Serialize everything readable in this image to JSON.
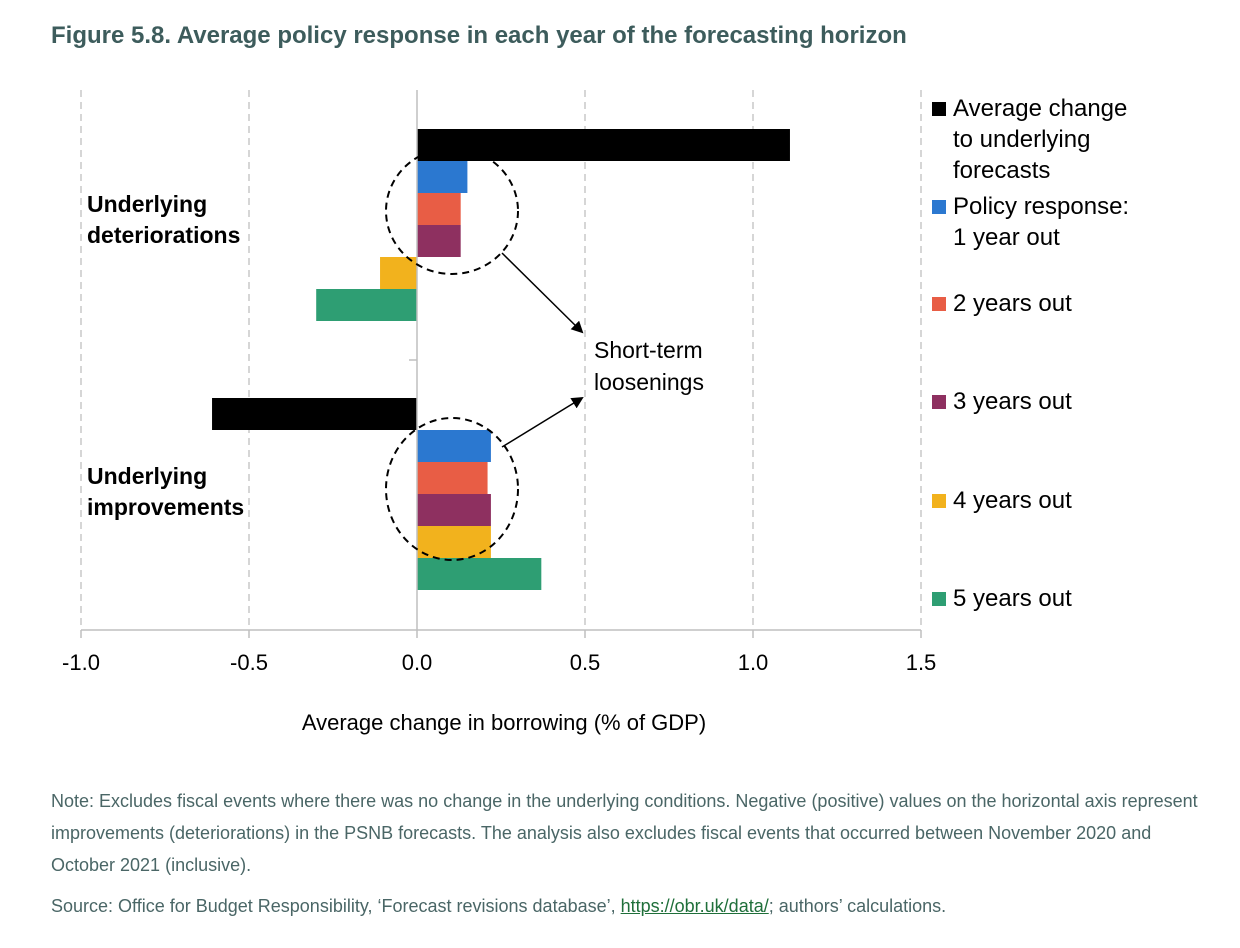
{
  "title": "Figure 5.8. Average policy response in each year of the forecasting horizon",
  "note": "Note: Excludes fiscal events where there was no change in the underlying conditions. Negative (positive) values on the horizontal axis represent improvements (deteriorations) in the PSNB forecasts. The analysis also excludes fiscal events that occurred between November 2020 and October 2021 (inclusive).",
  "source": {
    "prefix": "Source: Office for Budget Responsibility, ‘Forecast revisions database’, ",
    "link": "https://obr.uk/data/",
    "suffix": "; authors’ calculations."
  },
  "annotation": [
    "Short-term",
    "loosenings"
  ],
  "chart_data": {
    "type": "bar",
    "orientation": "horizontal",
    "categories": [
      [
        "Underlying",
        "deteriorations"
      ],
      [
        "Underlying",
        "improvements"
      ]
    ],
    "xlabel": "Average change in borrowing (% of GDP)",
    "xlim": [
      -1.0,
      1.5
    ],
    "xticks": [
      "-1.0",
      "-0.5",
      "0.0",
      "0.5",
      "1.0",
      "1.5"
    ],
    "grid": "vertical dashed",
    "legend_position": "right",
    "series": [
      {
        "name": [
          "Average change",
          "to underlying",
          "forecasts"
        ],
        "color": "#000000",
        "values": [
          1.11,
          -0.61
        ]
      },
      {
        "name": [
          "Policy response:",
          "1 year out"
        ],
        "color": "#2b78d0",
        "values": [
          0.15,
          0.22
        ]
      },
      {
        "name": [
          "2 years out"
        ],
        "color": "#e85d45",
        "values": [
          0.13,
          0.21
        ]
      },
      {
        "name": [
          "3 years out"
        ],
        "color": "#8e3060",
        "values": [
          0.13,
          0.22
        ]
      },
      {
        "name": [
          "4 years out"
        ],
        "color": "#f2b21d",
        "values": [
          -0.11,
          0.22
        ]
      },
      {
        "name": [
          "5 years out"
        ],
        "color": "#2e9e73",
        "values": [
          -0.3,
          0.37
        ]
      }
    ]
  }
}
